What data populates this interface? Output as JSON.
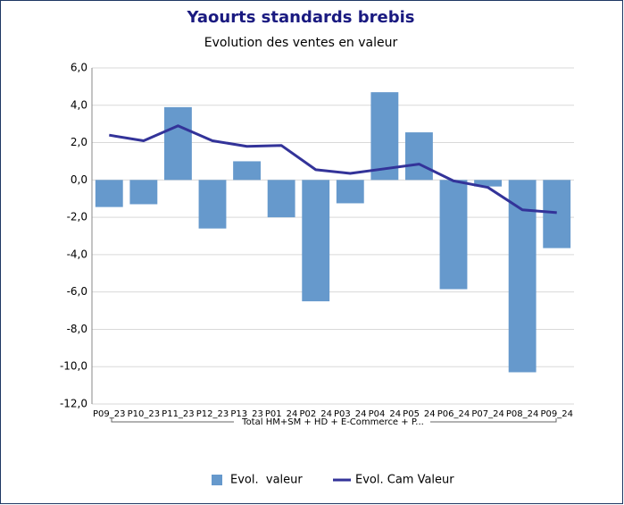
{
  "chart_data": {
    "type": "bar_line",
    "title": "Yaourts standards brebis",
    "subtitle": "Evolution des ventes en valeur",
    "categories": [
      "P09_23",
      "P10_23",
      "P11_23",
      "P12_23",
      "P13_23",
      "P01_24",
      "P02_24",
      "P03_24",
      "P04_24",
      "P05_24",
      "P06_24",
      "P07_24",
      "P08_24",
      "P09_24"
    ],
    "group_label": "Total HM+SM + HD + E-Commerce + P...",
    "series": [
      {
        "name": "Evol.  valeur",
        "type": "bar",
        "color": "#6699cc",
        "values": [
          -1.45,
          -1.3,
          3.9,
          -2.6,
          1.0,
          -2.0,
          -6.5,
          -1.25,
          4.7,
          2.55,
          -5.85,
          -0.35,
          -10.3,
          -3.65
        ]
      },
      {
        "name": "Evol. Cam Valeur",
        "type": "line",
        "color": "#333399",
        "values": [
          2.4,
          2.1,
          2.9,
          2.1,
          1.8,
          1.85,
          0.55,
          0.35,
          0.6,
          0.85,
          -0.05,
          -0.4,
          -1.6,
          -1.75
        ]
      }
    ],
    "ylim": [
      -12,
      6
    ],
    "yticks": [
      {
        "value": -12,
        "label": "-12,0"
      },
      {
        "value": -10,
        "label": "-10,0"
      },
      {
        "value": -8,
        "label": "-8,0"
      },
      {
        "value": -6,
        "label": "-6,0"
      },
      {
        "value": -4,
        "label": "-4,0"
      },
      {
        "value": -2,
        "label": "-2,0"
      },
      {
        "value": 0,
        "label": "0,0"
      },
      {
        "value": 2,
        "label": "2,0"
      },
      {
        "value": 4,
        "label": "4,0"
      },
      {
        "value": 6,
        "label": "6,0"
      }
    ],
    "grid": true,
    "legend": "bottom"
  }
}
